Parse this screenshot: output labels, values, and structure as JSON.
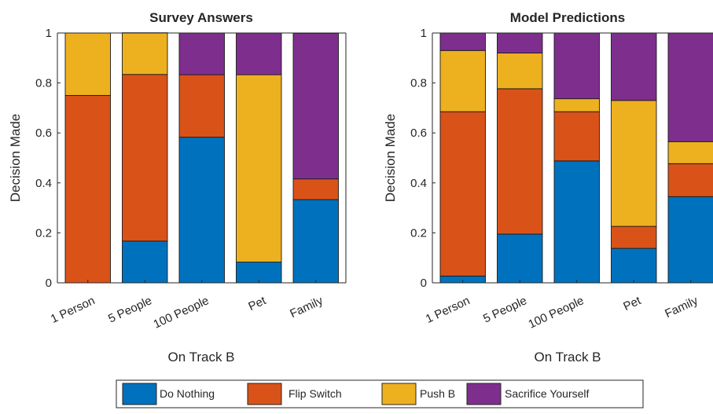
{
  "chart_data": [
    {
      "type": "bar",
      "stacked": true,
      "title": "Survey Answers",
      "xlabel": "On Track B",
      "ylabel": "Decision Made",
      "ylim": [
        0,
        1
      ],
      "yticks": [
        "0",
        "0.2",
        "0.4",
        "0.6",
        "0.8",
        "1"
      ],
      "categories": [
        "1 Person",
        "5 People",
        "100 People",
        "Pet",
        "Family"
      ],
      "series": [
        {
          "name": "Do Nothing",
          "color": "#0072BD",
          "values": [
            0,
            0.167,
            0.583,
            0.083,
            0.333
          ]
        },
        {
          "name": "Flip Switch",
          "color": "#D95319",
          "values": [
            0.75,
            0.667,
            0.25,
            0,
            0.083
          ]
        },
        {
          "name": "Push B",
          "color": "#EDB120",
          "values": [
            0.25,
            0.167,
            0,
            0.75,
            0
          ]
        },
        {
          "name": "Sacrifice Yourself",
          "color": "#7E2F8E",
          "values": [
            0,
            0,
            0.167,
            0.167,
            0.583
          ]
        }
      ]
    },
    {
      "type": "bar",
      "stacked": true,
      "title": "Model Predictions",
      "xlabel": "On Track B",
      "ylabel": "Decision Made",
      "ylim": [
        0,
        1
      ],
      "yticks": [
        "0",
        "0.2",
        "0.4",
        "0.6",
        "0.8",
        "1"
      ],
      "categories": [
        "1 Person",
        "5 People",
        "100 People",
        "Pet",
        "Family"
      ],
      "series": [
        {
          "name": "Do Nothing",
          "color": "#0072BD",
          "values": [
            0.027,
            0.195,
            0.488,
            0.138,
            0.345
          ]
        },
        {
          "name": "Flip Switch",
          "color": "#D95319",
          "values": [
            0.658,
            0.582,
            0.197,
            0.088,
            0.132
          ]
        },
        {
          "name": "Push B",
          "color": "#EDB120",
          "values": [
            0.245,
            0.143,
            0.052,
            0.504,
            0.088
          ]
        },
        {
          "name": "Sacrifice Yourself",
          "color": "#7E2F8E",
          "values": [
            0.07,
            0.08,
            0.263,
            0.27,
            0.435
          ]
        }
      ]
    }
  ],
  "legend": {
    "placement": "bottom",
    "entries": [
      {
        "label": "Do Nothing",
        "color": "#0072BD"
      },
      {
        "label": "Flip Switch",
        "color": "#D95319"
      },
      {
        "label": "Push B",
        "color": "#EDB120"
      },
      {
        "label": "Sacrifice Yourself",
        "color": "#7E2F8E"
      }
    ]
  }
}
